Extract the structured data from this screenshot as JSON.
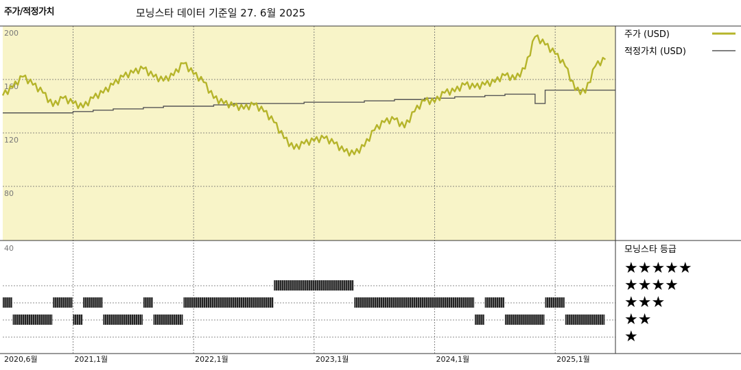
{
  "header": {
    "title": "주가/적정가치",
    "subtitle": "모닝스타 데이터 기준일 27. 6월 2025"
  },
  "legend": {
    "price_label": "주가 (USD)",
    "fair_label": "적정가치 (USD)",
    "rating_title": "모닝스타 등급",
    "price_color": "#b5b42a",
    "fair_color": "#555555",
    "panel_bg": "#f8f4c8"
  },
  "chart_data": [
    {
      "type": "line",
      "title": "주가/적정가치",
      "x_ticks": [
        "2020,6월",
        "2021,1월",
        "2022,1월",
        "2023,1월",
        "2024,1월",
        "2025,1월"
      ],
      "y_ticks": [
        200,
        160,
        120,
        80,
        40
      ],
      "ylim": [
        40,
        200
      ],
      "grid": true,
      "legend_position": "right",
      "series": [
        {
          "name": "주가 (USD)",
          "points": [
            [
              "2020-06",
              148
            ],
            [
              "2020-07",
              154
            ],
            [
              "2020-08",
              162
            ],
            [
              "2020-09",
              156
            ],
            [
              "2020-10",
              150
            ],
            [
              "2020-11",
              140
            ],
            [
              "2020-12",
              146
            ],
            [
              "2021-01",
              142
            ],
            [
              "2021-02",
              139
            ],
            [
              "2021-03",
              146
            ],
            [
              "2021-04",
              150
            ],
            [
              "2021-05",
              156
            ],
            [
              "2021-06",
              162
            ],
            [
              "2021-07",
              165
            ],
            [
              "2021-08",
              168
            ],
            [
              "2021-09",
              162
            ],
            [
              "2021-10",
              159
            ],
            [
              "2021-11",
              163
            ],
            [
              "2021-12",
              172
            ],
            [
              "2022-01",
              164
            ],
            [
              "2022-02",
              158
            ],
            [
              "2022-03",
              146
            ],
            [
              "2022-04",
              142
            ],
            [
              "2022-05",
              140
            ],
            [
              "2022-06",
              138
            ],
            [
              "2022-07",
              141
            ],
            [
              "2022-08",
              136
            ],
            [
              "2022-09",
              128
            ],
            [
              "2022-10",
              116
            ],
            [
              "2022-11",
              108
            ],
            [
              "2022-12",
              112
            ],
            [
              "2023-01",
              114
            ],
            [
              "2023-02",
              116
            ],
            [
              "2023-03",
              112
            ],
            [
              "2023-04",
              106
            ],
            [
              "2023-05",
              104
            ],
            [
              "2023-06",
              110
            ],
            [
              "2023-07",
              122
            ],
            [
              "2023-08",
              128
            ],
            [
              "2023-09",
              130
            ],
            [
              "2023-10",
              124
            ],
            [
              "2023-11",
              136
            ],
            [
              "2023-12",
              144
            ],
            [
              "2024-01",
              143
            ],
            [
              "2024-02",
              150
            ],
            [
              "2024-03",
              151
            ],
            [
              "2024-04",
              156
            ],
            [
              "2024-05",
              154
            ],
            [
              "2024-06",
              156
            ],
            [
              "2024-07",
              158
            ],
            [
              "2024-08",
              163
            ],
            [
              "2024-09",
              160
            ],
            [
              "2024-10",
              168
            ],
            [
              "2024-11",
              192
            ],
            [
              "2024-12",
              186
            ],
            [
              "2025-01",
              179
            ],
            [
              "2025-02",
              170
            ],
            [
              "2025-03",
              152
            ],
            [
              "2025-04",
              150
            ],
            [
              "2025-05",
              170
            ],
            [
              "2025-06",
              175
            ]
          ]
        },
        {
          "name": "적정가치 (USD)",
          "points": [
            [
              "2020-06",
              135
            ],
            [
              "2020-12",
              135
            ],
            [
              "2021-01",
              136
            ],
            [
              "2021-03",
              137
            ],
            [
              "2021-05",
              138
            ],
            [
              "2021-08",
              139
            ],
            [
              "2021-10",
              140
            ],
            [
              "2022-01",
              140
            ],
            [
              "2022-03",
              141
            ],
            [
              "2022-05",
              142
            ],
            [
              "2022-08",
              142
            ],
            [
              "2022-12",
              143
            ],
            [
              "2023-03",
              143
            ],
            [
              "2023-06",
              144
            ],
            [
              "2023-09",
              145
            ],
            [
              "2023-12",
              146
            ],
            [
              "2024-03",
              147
            ],
            [
              "2024-06",
              148
            ],
            [
              "2024-08",
              149
            ],
            [
              "2024-10",
              149
            ],
            [
              "2024-11",
              142
            ],
            [
              "2024-12",
              152
            ],
            [
              "2025-06",
              152
            ]
          ]
        }
      ]
    },
    {
      "type": "bar",
      "title": "모닝스타 등급",
      "levels": [
        "★★★★★",
        "★★★★",
        "★★★",
        "★★",
        "★"
      ],
      "rating_periods": [
        {
          "stars": 3,
          "start": "2020-06",
          "end": "2020-07"
        },
        {
          "stars": 2,
          "start": "2020-07",
          "end": "2020-11"
        },
        {
          "stars": 3,
          "start": "2020-11",
          "end": "2021-01"
        },
        {
          "stars": 2,
          "start": "2021-01",
          "end": "2021-02"
        },
        {
          "stars": 3,
          "start": "2021-02",
          "end": "2021-04"
        },
        {
          "stars": 2,
          "start": "2021-04",
          "end": "2021-08"
        },
        {
          "stars": 3,
          "start": "2021-08",
          "end": "2021-09"
        },
        {
          "stars": 2,
          "start": "2021-09",
          "end": "2021-12"
        },
        {
          "stars": 3,
          "start": "2021-12",
          "end": "2022-09"
        },
        {
          "stars": 4,
          "start": "2022-09",
          "end": "2023-05"
        },
        {
          "stars": 3,
          "start": "2023-05",
          "end": "2024-05"
        },
        {
          "stars": 2,
          "start": "2024-05",
          "end": "2024-06"
        },
        {
          "stars": 3,
          "start": "2024-06",
          "end": "2024-08"
        },
        {
          "stars": 2,
          "start": "2024-08",
          "end": "2024-12"
        },
        {
          "stars": 3,
          "start": "2024-12",
          "end": "2025-02"
        },
        {
          "stars": 2,
          "start": "2025-02",
          "end": "2025-06"
        }
      ]
    }
  ]
}
